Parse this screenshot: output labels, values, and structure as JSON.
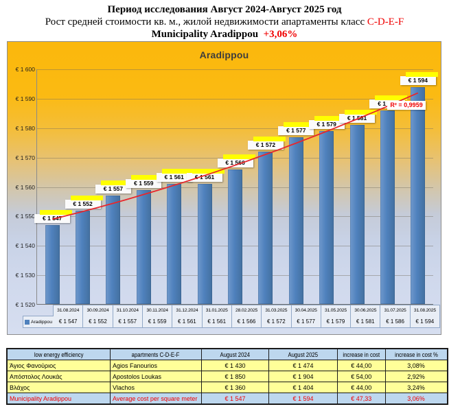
{
  "header": {
    "line1": "Период исследования Август 2024-Август 2025 год",
    "line2_black": "Рост средней стоимости кв. м., жилой недвижимости апартаменты класс ",
    "line2_red": "C-D-E-F",
    "line3_black": "Municipality Aradippou",
    "line3_red": "+3,06%"
  },
  "chart_data": [
    {
      "type": "bar",
      "title": "Aradippou",
      "legend": "Aradippou",
      "legend_position": "data-table-left",
      "grid": true,
      "categories": [
        "31.08.2024",
        "30.09.2024",
        "31.10.2024",
        "30.11.2024",
        "31.12.2024",
        "31.01.2025",
        "28.02.2025",
        "31.03.2025",
        "30.04.2025",
        "31.05.2025",
        "30.06.2025",
        "31.07.2025",
        "31.08.2025"
      ],
      "values": [
        1547,
        1552,
        1557,
        1559,
        1561,
        1561,
        1566,
        1572,
        1577,
        1579,
        1581,
        1586,
        1594
      ],
      "labels": [
        "€ 1 547",
        "€ 1 552",
        "€ 1 557",
        "€ 1 559",
        "€ 1 561",
        "€ 1 561",
        "€ 1 566",
        "€ 1 572",
        "€ 1 577",
        "€ 1 579",
        "€ 1 581",
        "€ 1 586",
        "€ 1 594"
      ],
      "ylim": [
        1520,
        1600
      ],
      "ytick_step": 10,
      "ytick_labels": [
        "€ 1 520",
        "€ 1 530",
        "€ 1 540",
        "€ 1 550",
        "€ 1 560",
        "€ 1 570",
        "€ 1 580",
        "€ 1 590",
        "€ 1 600"
      ],
      "trendline": {
        "type": "polynomial",
        "annotation": "R² = 0,9959",
        "color": "#e8262b"
      },
      "bar_color": "#4f81bd"
    },
    {
      "type": "table",
      "headers": [
        "low energy efficiency",
        "apartments C-D-E-F",
        "August 2024",
        "August 2025",
        "increase in cost",
        "increase in cost %"
      ],
      "rows": [
        [
          "Άγιος Φανούριος",
          "Agios Fanourios",
          "€ 1 430",
          "€ 1 474",
          "€ 44,00",
          "3,08%"
        ],
        [
          "Απόστολος Λουκάς",
          "Apostolos Loukas",
          "€ 1 850",
          "€ 1 904",
          "€ 54,00",
          "2,92%"
        ],
        [
          "Βλάχος",
          "Vlachos",
          "€ 1 360",
          "€ 1 404",
          "€ 44,00",
          "3,24%"
        ],
        [
          "Municipality Aradippou",
          "Average cost per square meter",
          "€ 1 547",
          "€ 1 594",
          "€ 47,33",
          "3,06%"
        ]
      ],
      "highlight_row_index": 3
    }
  ],
  "colors": {
    "accent_red": "#f00000",
    "bar_blue": "#4f81bd",
    "header_row_blue": "#bdd7ee",
    "data_row_yellow": "#ffff99",
    "label_highlight_yellow": "#ffff00",
    "chart_gold_top": "#fbb80c",
    "chart_blue_bottom": "#d6def0"
  }
}
